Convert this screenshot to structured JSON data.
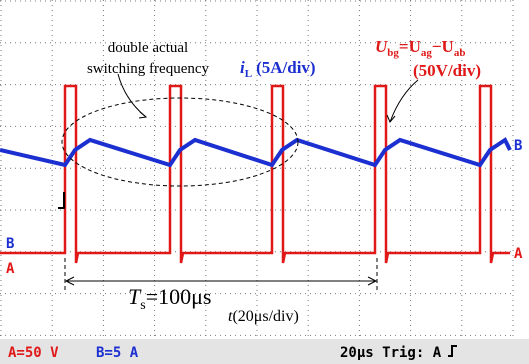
{
  "frequency_note": [
    "double actual",
    "switching frequency"
  ],
  "current_label": {
    "symbol": "i",
    "subscript": "L",
    "scale": "(5A/div)"
  },
  "voltage_label": {
    "parts": [
      "U",
      "bg",
      "=U",
      "ag",
      "−U",
      "ab"
    ],
    "scale": "(50V/div)"
  },
  "period_label": {
    "symbol": "T",
    "subscript": "s",
    "value": "=100μs"
  },
  "time_label": {
    "symbol": "t",
    "scale": "(20μs/div)"
  },
  "channel_markers": {
    "left": [
      "B",
      "A"
    ],
    "right": [
      "B",
      "A"
    ]
  },
  "status_bar": {
    "channel_a": "A=50 V",
    "channel_b": "B=5 A",
    "timebase": "20μs Trig: A"
  }
}
